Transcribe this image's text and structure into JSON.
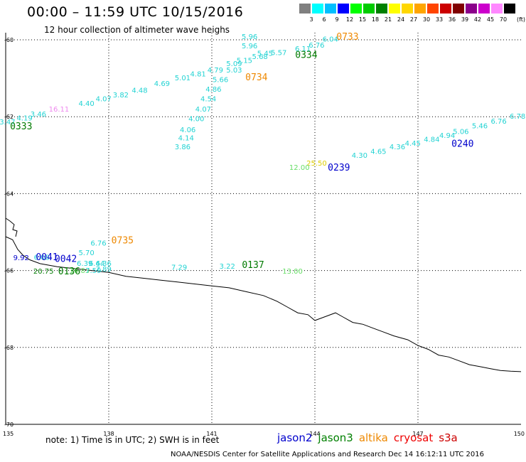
{
  "header": {
    "title": "00:00 – 11:59 UTC 10/15/2016",
    "subtitle": "12 hour collection of altimeter wave heighs"
  },
  "legend": {
    "unit": "(ft)",
    "bins": [
      {
        "label": "3",
        "color": "#808080"
      },
      {
        "label": "6",
        "color": "#00ffff"
      },
      {
        "label": "9",
        "color": "#00bfff"
      },
      {
        "label": "12",
        "color": "#0000ff"
      },
      {
        "label": "15",
        "color": "#00ff00"
      },
      {
        "label": "18",
        "color": "#00cc00"
      },
      {
        "label": "21",
        "color": "#008000"
      },
      {
        "label": "24",
        "color": "#ffff00"
      },
      {
        "label": "27",
        "color": "#ffd700"
      },
      {
        "label": "30",
        "color": "#ffa500"
      },
      {
        "label": "33",
        "color": "#ff4500"
      },
      {
        "label": "36",
        "color": "#cc0000"
      },
      {
        "label": "39",
        "color": "#800000"
      },
      {
        "label": "42",
        "color": "#8b008b"
      },
      {
        "label": "45",
        "color": "#cc00cc"
      },
      {
        "label": "70",
        "color": "#ff88ff"
      },
      {
        "label": "",
        "color": "#000000"
      }
    ]
  },
  "axes": {
    "lon_min": 135,
    "lon_max": 150,
    "lat_min": -70,
    "lat_max": -59.5,
    "x_ticks": [
      {
        "v": 135,
        "label": "135"
      },
      {
        "v": 138,
        "label": "138"
      },
      {
        "v": 141,
        "label": "141"
      },
      {
        "v": 144,
        "label": "144"
      },
      {
        "v": 147,
        "label": "147"
      },
      {
        "v": 150,
        "label": "150"
      }
    ],
    "y_ticks": [
      {
        "v": -60,
        "label": "-60"
      },
      {
        "v": -62,
        "label": "-62"
      },
      {
        "v": -64,
        "label": "-64"
      },
      {
        "v": -66,
        "label": "-66"
      },
      {
        "v": -68,
        "label": "-68"
      },
      {
        "v": -70,
        "label": "-70"
      }
    ]
  },
  "colors": {
    "cyan": "#22d3d3",
    "green": "#007a00",
    "lightgreen": "#66dd66",
    "blue": "#0000cc",
    "orange": "#ee8800",
    "yellow": "#ddcc00",
    "pink": "#ee88ee"
  },
  "coastline": [
    [
      135.0,
      -65.12
    ],
    [
      135.2,
      -65.2
    ],
    [
      135.35,
      -65.45
    ],
    [
      135.5,
      -65.6
    ],
    [
      135.7,
      -65.72
    ],
    [
      136.0,
      -65.82
    ],
    [
      136.5,
      -65.9
    ],
    [
      137.0,
      -65.95
    ],
    [
      137.5,
      -66.0
    ],
    [
      138.0,
      -66.05
    ],
    [
      138.5,
      -66.15
    ],
    [
      139.0,
      -66.2
    ],
    [
      139.5,
      -66.25
    ],
    [
      140.0,
      -66.3
    ],
    [
      140.5,
      -66.35
    ],
    [
      141.0,
      -66.4
    ],
    [
      141.5,
      -66.45
    ],
    [
      142.0,
      -66.55
    ],
    [
      142.5,
      -66.65
    ],
    [
      142.9,
      -66.8
    ],
    [
      143.2,
      -66.95
    ],
    [
      143.5,
      -67.1
    ],
    [
      143.8,
      -67.15
    ],
    [
      144.0,
      -67.3
    ],
    [
      144.3,
      -67.2
    ],
    [
      144.6,
      -67.1
    ],
    [
      144.8,
      -67.2
    ],
    [
      145.1,
      -67.35
    ],
    [
      145.4,
      -67.4
    ],
    [
      145.7,
      -67.5
    ],
    [
      146.0,
      -67.6
    ],
    [
      146.3,
      -67.7
    ],
    [
      146.7,
      -67.8
    ],
    [
      147.0,
      -67.95
    ],
    [
      147.3,
      -68.05
    ],
    [
      147.6,
      -68.2
    ],
    [
      147.9,
      -68.25
    ],
    [
      148.2,
      -68.35
    ],
    [
      148.5,
      -68.45
    ],
    [
      148.8,
      -68.5
    ],
    [
      149.1,
      -68.55
    ],
    [
      149.4,
      -68.6
    ],
    [
      149.7,
      -68.62
    ],
    [
      150.0,
      -68.63
    ]
  ],
  "points": [
    {
      "lon": 144.95,
      "lat": -60.0,
      "label": "0733",
      "color": "orange",
      "size": 13
    },
    {
      "lon": 142.1,
      "lat": -59.98,
      "label": "5.96",
      "color": "cyan",
      "size": 10
    },
    {
      "lon": 144.45,
      "lat": -60.05,
      "label": "6.04",
      "color": "cyan",
      "size": 10
    },
    {
      "lon": 144.05,
      "lat": -60.2,
      "label": "6.76",
      "color": "cyan",
      "size": 10
    },
    {
      "lon": 142.1,
      "lat": -60.22,
      "label": "5.96",
      "color": "cyan",
      "size": 10
    },
    {
      "lon": 143.65,
      "lat": -60.3,
      "label": "6.11",
      "color": "cyan",
      "size": 10
    },
    {
      "lon": 142.95,
      "lat": -60.4,
      "label": "5.57",
      "color": "cyan",
      "size": 10
    },
    {
      "lon": 142.55,
      "lat": -60.42,
      "label": "5.45",
      "color": "cyan",
      "size": 10
    },
    {
      "lon": 143.75,
      "lat": -60.47,
      "label": "0334",
      "color": "green",
      "size": 13
    },
    {
      "lon": 142.4,
      "lat": -60.5,
      "label": "5.68",
      "color": "cyan",
      "size": 10
    },
    {
      "lon": 141.95,
      "lat": -60.6,
      "label": "5.15",
      "color": "cyan",
      "size": 10
    },
    {
      "lon": 141.65,
      "lat": -60.68,
      "label": "5.09",
      "color": "cyan",
      "size": 10
    },
    {
      "lon": 141.1,
      "lat": -60.85,
      "label": "4.79",
      "color": "cyan",
      "size": 10
    },
    {
      "lon": 141.65,
      "lat": -60.85,
      "label": "5.03",
      "color": "cyan",
      "size": 10
    },
    {
      "lon": 140.6,
      "lat": -60.95,
      "label": "4.81",
      "color": "cyan",
      "size": 10
    },
    {
      "lon": 140.15,
      "lat": -61.05,
      "label": "5.01",
      "color": "cyan",
      "size": 10
    },
    {
      "lon": 142.3,
      "lat": -61.05,
      "label": "0734",
      "color": "orange",
      "size": 13
    },
    {
      "lon": 141.25,
      "lat": -61.1,
      "label": "5.66",
      "color": "cyan",
      "size": 10
    },
    {
      "lon": 139.55,
      "lat": -61.2,
      "label": "4.69",
      "color": "cyan",
      "size": 10
    },
    {
      "lon": 141.05,
      "lat": -61.35,
      "label": "4.86",
      "color": "cyan",
      "size": 10
    },
    {
      "lon": 138.9,
      "lat": -61.38,
      "label": "4.48",
      "color": "cyan",
      "size": 10
    },
    {
      "lon": 138.35,
      "lat": -61.5,
      "label": "3.82",
      "color": "cyan",
      "size": 10
    },
    {
      "lon": 137.85,
      "lat": -61.6,
      "label": "4.07",
      "color": "cyan",
      "size": 10
    },
    {
      "lon": 140.9,
      "lat": -61.6,
      "label": "4.54",
      "color": "cyan",
      "size": 10
    },
    {
      "lon": 137.35,
      "lat": -61.72,
      "label": "4.40",
      "color": "cyan",
      "size": 10
    },
    {
      "lon": 136.55,
      "lat": -61.87,
      "label": "16.11",
      "color": "pink",
      "size": 10
    },
    {
      "lon": 140.75,
      "lat": -61.87,
      "label": "4.07",
      "color": "cyan",
      "size": 10
    },
    {
      "lon": 135.95,
      "lat": -62.0,
      "label": "3.46",
      "color": "cyan",
      "size": 10
    },
    {
      "lon": 135.55,
      "lat": -62.1,
      "label": "4.19",
      "color": "cyan",
      "size": 10
    },
    {
      "lon": 140.55,
      "lat": -62.12,
      "label": "4.00",
      "color": "cyan",
      "size": 10
    },
    {
      "lon": 135.05,
      "lat": -62.2,
      "label": "3.47",
      "color": "cyan",
      "size": 10
    },
    {
      "lon": 134.55,
      "lat": -62.3,
      "label": "3.51",
      "color": "cyan",
      "size": 10
    },
    {
      "lon": 135.45,
      "lat": -62.33,
      "label": "0333",
      "color": "green",
      "size": 13
    },
    {
      "lon": 133.9,
      "lat": -62.42,
      "label": "3.67",
      "color": "cyan",
      "size": 10
    },
    {
      "lon": 140.3,
      "lat": -62.4,
      "label": "4.06",
      "color": "cyan",
      "size": 10
    },
    {
      "lon": 133.5,
      "lat": -62.5,
      "label": "3.63",
      "color": "cyan",
      "size": 10
    },
    {
      "lon": 133.05,
      "lat": -62.58,
      "label": "3.75",
      "color": "cyan",
      "size": 10
    },
    {
      "lon": 133.75,
      "lat": -62.62,
      "label": "0332",
      "color": "green",
      "size": 13
    },
    {
      "lon": 140.25,
      "lat": -62.62,
      "label": "4.14",
      "color": "cyan",
      "size": 10
    },
    {
      "lon": 140.15,
      "lat": -62.85,
      "label": "3.86",
      "color": "cyan",
      "size": 10
    },
    {
      "lon": 149.9,
      "lat": -62.05,
      "label": "6.78",
      "color": "cyan",
      "size": 10
    },
    {
      "lon": 149.35,
      "lat": -62.18,
      "label": "6.76",
      "color": "cyan",
      "size": 10
    },
    {
      "lon": 148.8,
      "lat": -62.3,
      "label": "5.46",
      "color": "cyan",
      "size": 10
    },
    {
      "lon": 148.25,
      "lat": -62.45,
      "label": "5.06",
      "color": "cyan",
      "size": 10
    },
    {
      "lon": 147.85,
      "lat": -62.55,
      "label": "4.94",
      "color": "cyan",
      "size": 10
    },
    {
      "lon": 147.4,
      "lat": -62.65,
      "label": "4.84",
      "color": "cyan",
      "size": 10
    },
    {
      "lon": 148.3,
      "lat": -62.78,
      "label": "0240",
      "color": "blue",
      "size": 13
    },
    {
      "lon": 146.85,
      "lat": -62.75,
      "label": "4.45",
      "color": "cyan",
      "size": 10
    },
    {
      "lon": 146.4,
      "lat": -62.85,
      "label": "4.36",
      "color": "cyan",
      "size": 10
    },
    {
      "lon": 145.85,
      "lat": -62.97,
      "label": "4.65",
      "color": "cyan",
      "size": 10
    },
    {
      "lon": 145.3,
      "lat": -63.07,
      "label": "4.30",
      "color": "cyan",
      "size": 10
    },
    {
      "lon": 144.05,
      "lat": -63.27,
      "label": "25.50",
      "color": "yellow",
      "size": 10
    },
    {
      "lon": 143.55,
      "lat": -63.38,
      "label": "12.00",
      "color": "lightgreen",
      "size": 10
    },
    {
      "lon": 144.7,
      "lat": -63.4,
      "label": "0239",
      "color": "blue",
      "size": 13
    },
    {
      "lon": 138.4,
      "lat": -65.3,
      "label": "0735",
      "color": "orange",
      "size": 13
    },
    {
      "lon": 137.7,
      "lat": -65.35,
      "label": "6.76",
      "color": "cyan",
      "size": 10
    },
    {
      "lon": 137.35,
      "lat": -65.6,
      "label": "5.70",
      "color": "cyan",
      "size": 10
    },
    {
      "lon": 135.45,
      "lat": -65.73,
      "label": "9.92",
      "color": "blue",
      "size": 10
    },
    {
      "lon": 136.05,
      "lat": -65.72,
      "label": "6.08",
      "color": "cyan",
      "size": 10
    },
    {
      "lon": 136.2,
      "lat": -65.73,
      "label": "0041",
      "color": "blue",
      "size": 13
    },
    {
      "lon": 136.75,
      "lat": -65.78,
      "label": "0042",
      "color": "blue",
      "size": 13
    },
    {
      "lon": 137.3,
      "lat": -65.88,
      "label": "6.39",
      "color": "cyan",
      "size": 10
    },
    {
      "lon": 137.85,
      "lat": -65.88,
      "label": "6.36",
      "color": "cyan",
      "size": 10
    },
    {
      "lon": 137.65,
      "lat": -65.88,
      "label": "6.44",
      "color": "cyan",
      "size": 10
    },
    {
      "lon": 136.1,
      "lat": -66.08,
      "label": "20.75",
      "color": "green",
      "size": 10
    },
    {
      "lon": 137.15,
      "lat": -66.06,
      "label": "16.83",
      "color": "lightgreen",
      "size": 10
    },
    {
      "lon": 137.55,
      "lat": -66.06,
      "label": "7.59",
      "color": "cyan",
      "size": 10
    },
    {
      "lon": 137.85,
      "lat": -66.03,
      "label": "7.89",
      "color": "cyan",
      "size": 10
    },
    {
      "lon": 136.85,
      "lat": -66.1,
      "label": "0136",
      "color": "green",
      "size": 13
    },
    {
      "lon": 140.05,
      "lat": -65.98,
      "label": "7.29",
      "color": "cyan",
      "size": 10
    },
    {
      "lon": 141.45,
      "lat": -65.95,
      "label": "3.22",
      "color": "cyan",
      "size": 10
    },
    {
      "lon": 142.2,
      "lat": -65.93,
      "label": "0137",
      "color": "green",
      "size": 13
    },
    {
      "lon": 143.35,
      "lat": -66.08,
      "label": "13.00",
      "color": "lightgreen",
      "size": 10
    }
  ],
  "note": "note:  1) Time is in UTC;  2) SWH is in feet",
  "satellites": [
    {
      "name": "jason2",
      "color": "#0000cc"
    },
    {
      "name": "jason3",
      "color": "#008000"
    },
    {
      "name": "altika",
      "color": "#ee8800"
    },
    {
      "name": "cryosat",
      "color": "#ee0000"
    },
    {
      "name": "s3a",
      "color": "#cc0000"
    }
  ],
  "credit": "NOAA/NESDIS Center for Satellite Applications and Research     Dec 14 16:12:11 UTC 2016"
}
